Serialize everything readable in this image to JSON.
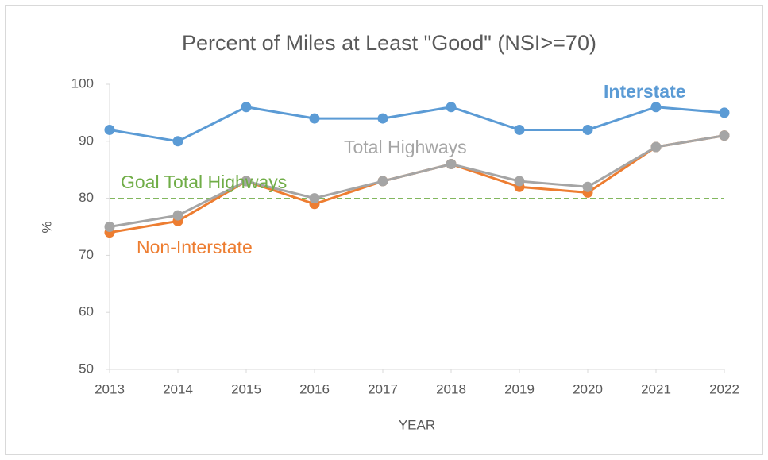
{
  "chart_data": {
    "type": "line",
    "title": "Percent of Miles at Least \"Good\" (NSI>=70)",
    "xlabel": "YEAR",
    "ylabel": "%",
    "categories": [
      "2013",
      "2014",
      "2015",
      "2016",
      "2017",
      "2018",
      "2019",
      "2020",
      "2021",
      "2022"
    ],
    "series": [
      {
        "name": "Interstate",
        "color": "#5b9bd5",
        "values": [
          92,
          90,
          96,
          94,
          94,
          96,
          92,
          92,
          96,
          95
        ]
      },
      {
        "name": "Non-Interstate",
        "color": "#ed7d31",
        "values": [
          74,
          76,
          83,
          79,
          83,
          86,
          82,
          81,
          89,
          91
        ]
      },
      {
        "name": "Total Highways",
        "color": "#a5a5a5",
        "values": [
          75,
          77,
          83,
          80,
          83,
          86,
          83,
          82,
          89,
          91
        ]
      }
    ],
    "goal_label": "Goal Total Highways",
    "goal_lines": [
      86,
      80
    ],
    "goal_color": "#70ad47",
    "ylim": [
      50,
      100
    ],
    "yticks": [
      50,
      60,
      70,
      80,
      90,
      100
    ],
    "grid": false
  }
}
